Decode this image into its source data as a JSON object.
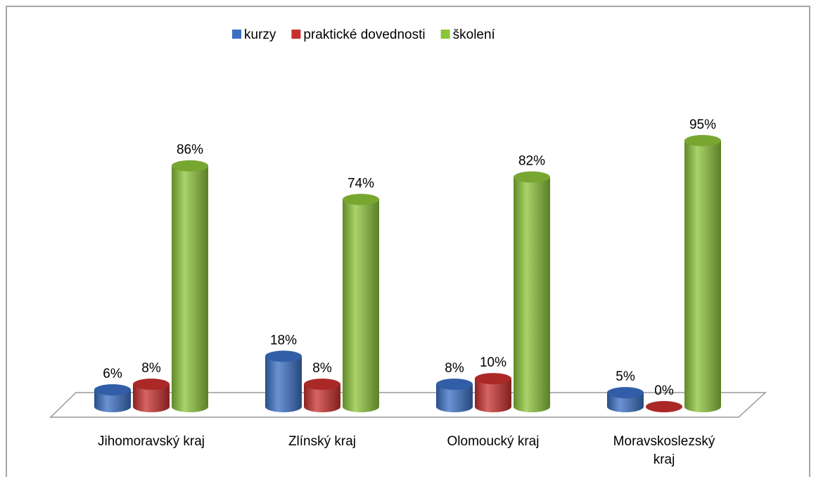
{
  "chart_data": {
    "type": "bar3d",
    "categories": [
      "Jihomoravský kraj",
      "Zlínský kraj",
      "Olomoucký kraj",
      "Moravskoslezský kraj"
    ],
    "series": [
      {
        "name": "kurzy",
        "color": "#3a6fc4",
        "values": [
          6,
          18,
          8,
          5
        ],
        "value_labels": [
          "6%",
          "18%",
          "8%",
          "5%"
        ]
      },
      {
        "name": "praktické dovednosti",
        "color": "#c8302e",
        "values": [
          8,
          8,
          10,
          0
        ],
        "value_labels": [
          "8%",
          "8%",
          "10%",
          "0%"
        ]
      },
      {
        "name": "školení",
        "color": "#8cc43a",
        "values": [
          86,
          74,
          82,
          95
        ],
        "value_labels": [
          "86%",
          "74%",
          "82%",
          "95%"
        ]
      }
    ],
    "legend": "top"
  }
}
